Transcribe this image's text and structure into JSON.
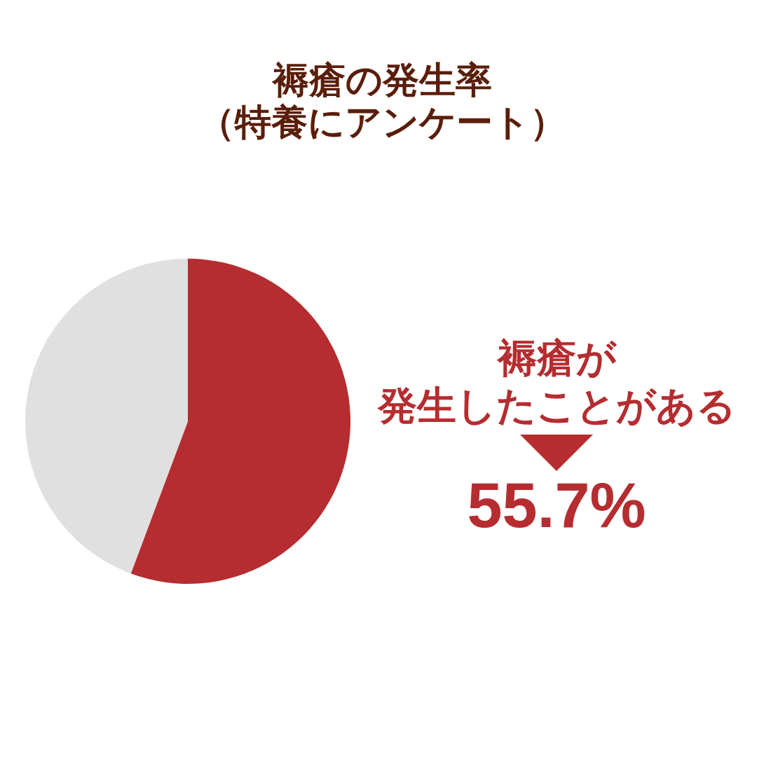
{
  "chart_data": {
    "type": "pie",
    "title": "褥瘡の発生率",
    "subtitle": "（特養にアンケート）",
    "categories": [
      "褥瘡が発生したことがある",
      null
    ],
    "values": [
      55.7,
      44.3
    ],
    "colors": [
      "#b52d30",
      "#e0e0e0"
    ],
    "value_labels": [
      "55.7%",
      null
    ]
  }
}
